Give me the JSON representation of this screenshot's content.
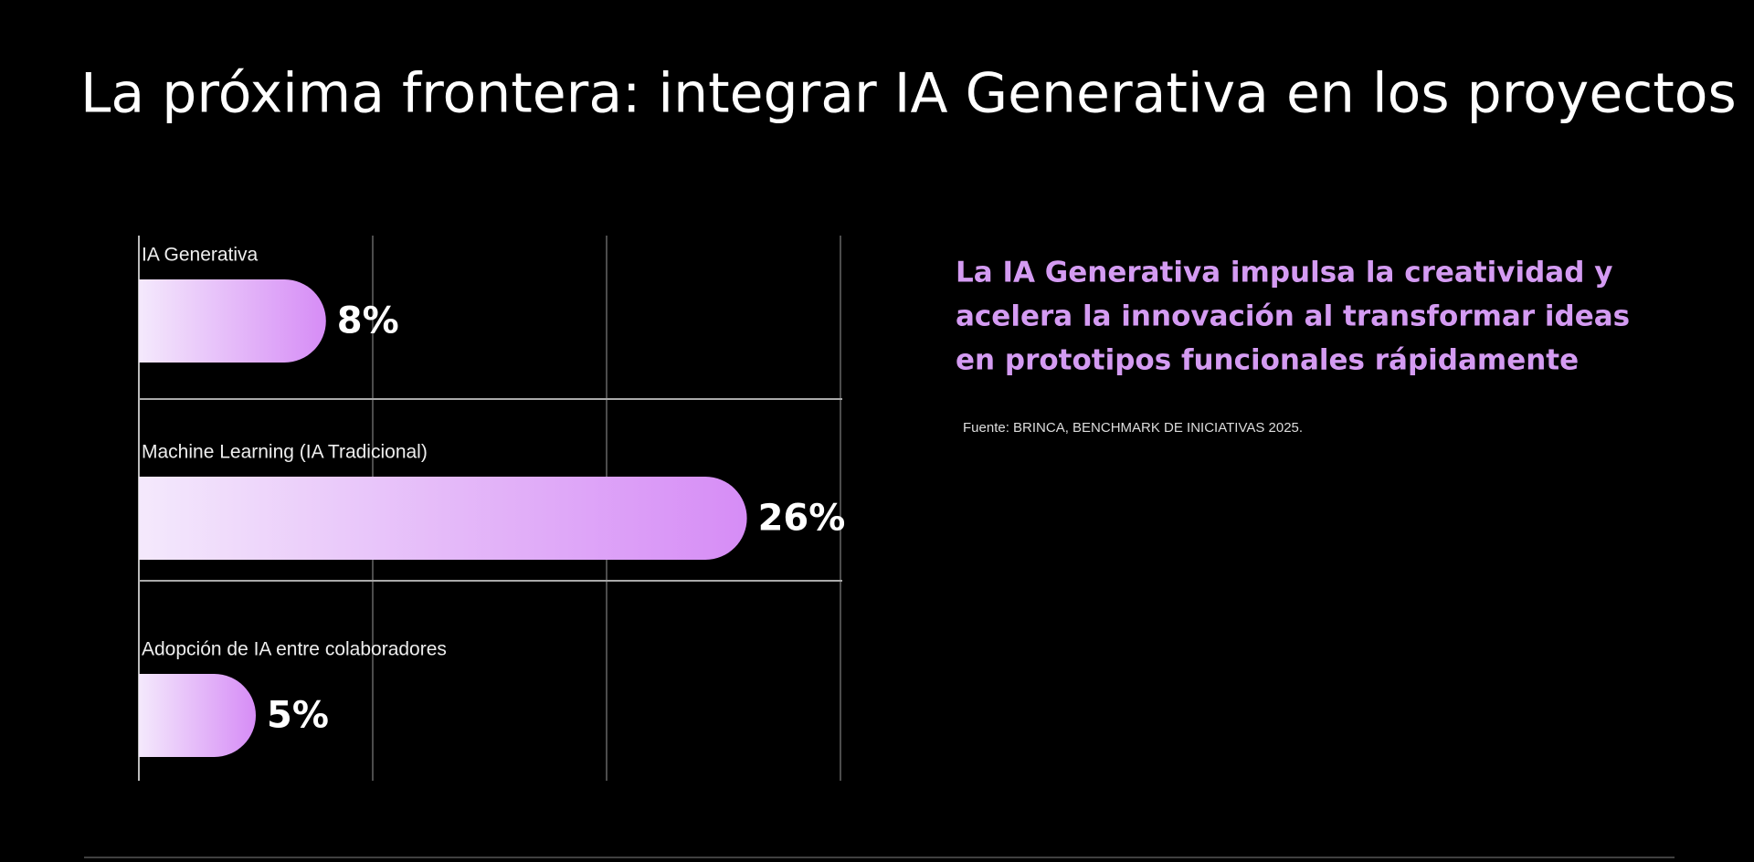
{
  "chart_data": {
    "type": "bar",
    "orientation": "horizontal",
    "title": "La próxima frontera: integrar IA Generativa en los proyectos",
    "categories": [
      "IA Generativa",
      "Machine Learning (IA Tradicional)",
      "Adopción de IA entre colaboradores"
    ],
    "values": [
      8,
      26,
      5
    ],
    "value_labels": [
      "8%",
      "26%",
      "5%"
    ],
    "color": [
      "#f4e9fc",
      "#d68cf6"
    ],
    "xlim": [
      0,
      30
    ],
    "xticks": [
      0,
      10,
      20,
      30
    ],
    "grid": true,
    "annotations": [
      "La IA Generativa impulsa la creatividad y",
      "acelera la innovación al transformar ideas",
      "en prototipos funcionales rápidamente",
      "Fuente: BRINCA, BENCHMARK DE INICIATIVAS 2025."
    ]
  }
}
